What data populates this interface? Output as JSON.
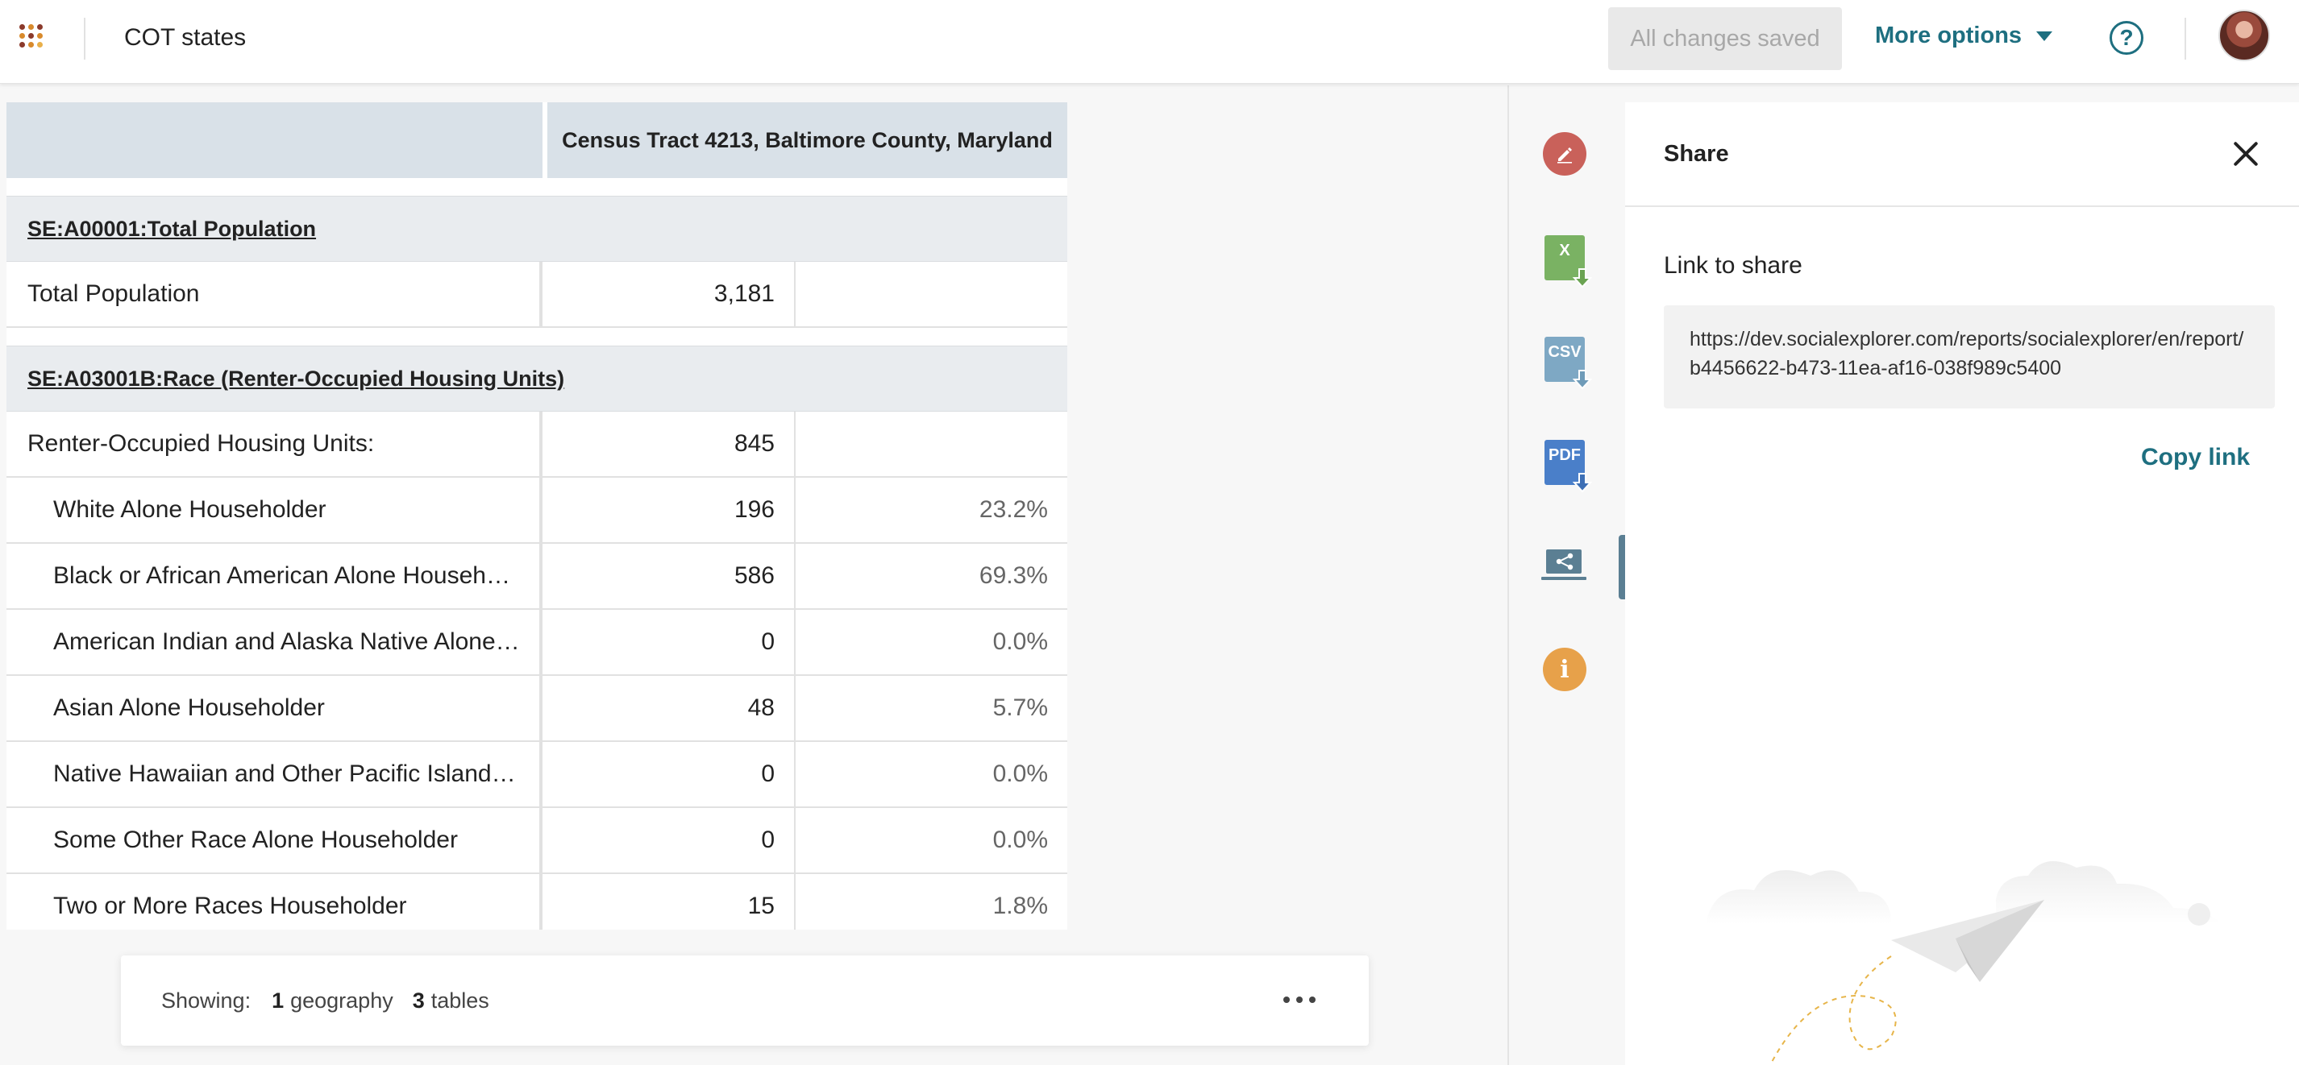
{
  "header": {
    "report_title": "COT states",
    "saved_status": "All changes saved",
    "more_options_label": "More options",
    "help_glyph": "?",
    "app_grid_icon": "app-grid-icon",
    "app_grid_colors": [
      "#8b3a2b",
      "#d88a2c",
      "#8b3a2b",
      "#d88a2c",
      "#8b3a2b",
      "#d88a2c",
      "#8b3a2b",
      "#d88a2c",
      "#e9b04a"
    ]
  },
  "table": {
    "geography_header": "Census Tract 4213, Baltimore County, Maryland",
    "sections": [
      {
        "title": "SE:A00001:Total Population",
        "rows": [
          {
            "label": "Total Population",
            "value": "3,181",
            "percent": ""
          }
        ]
      },
      {
        "title": "SE:A03001B:Race (Renter-Occupied Housing Units)",
        "rows": [
          {
            "label": "Renter-Occupied Housing Units:",
            "value": "845",
            "percent": ""
          },
          {
            "label": "White Alone Householder",
            "value": "196",
            "percent": "23.2%"
          },
          {
            "label": "Black or African American Alone Householder",
            "value": "586",
            "percent": "69.3%"
          },
          {
            "label": "American Indian and Alaska Native Alone Ho…",
            "value": "0",
            "percent": "0.0%"
          },
          {
            "label": "Asian Alone Householder",
            "value": "48",
            "percent": "5.7%"
          },
          {
            "label": "Native Hawaiian and Other Pacific Islander A…",
            "value": "0",
            "percent": "0.0%"
          },
          {
            "label": "Some Other Race Alone Householder",
            "value": "0",
            "percent": "0.0%"
          },
          {
            "label": "Two or More Races Householder",
            "value": "15",
            "percent": "1.8%"
          }
        ]
      }
    ]
  },
  "footer": {
    "showing_label": "Showing:",
    "geography_count": "1",
    "geography_word": "geography",
    "tables_count": "3",
    "tables_word": "tables"
  },
  "rail": {
    "xls_text": "X",
    "csv_text": "CSV",
    "pdf_text": "PDF",
    "info_glyph": "i",
    "colors": {
      "edit": "#c9615a",
      "xls": "#7ab263",
      "csv": "#7ea8c4",
      "pdf": "#4a7fc9",
      "info": "#e7a14a",
      "share": "#5b7f93"
    }
  },
  "share": {
    "title": "Share",
    "link_label": "Link to share",
    "url": "https://dev.socialexplorer.com/reports/socialexplorer/en/report/b4456622-b473-11ea-af16-038f989c5400",
    "copy_label": "Copy link"
  },
  "colors": {
    "accent": "#1e6f80",
    "table_header_bg": "#d9e1e8",
    "section_bg": "#e9ecef"
  }
}
